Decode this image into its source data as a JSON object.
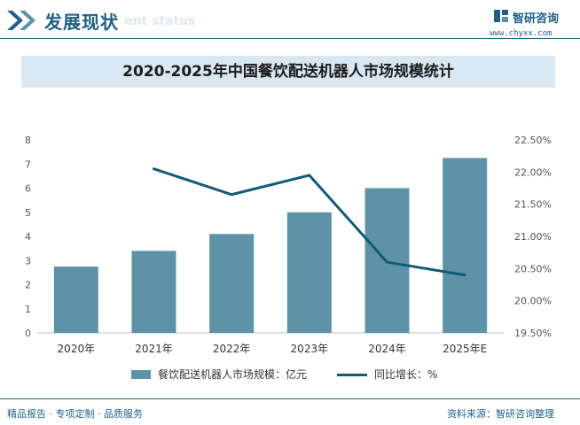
{
  "header": {
    "title": "发展现状",
    "subtitle": "ent status"
  },
  "brand": {
    "name": "智研咨询",
    "url": "www.chyxx.com"
  },
  "chart_data": {
    "type": "bar",
    "title": "2020-2025年中国餐饮配送机器人市场规模统计",
    "categories": [
      "2020年",
      "2021年",
      "2022年",
      "2023年",
      "2024年",
      "2025年E"
    ],
    "series": [
      {
        "name": "餐饮配送机器人市场规模：亿元",
        "type": "bar",
        "axis": "left",
        "values": [
          2.75,
          3.4,
          4.1,
          5.0,
          6.0,
          7.25
        ]
      },
      {
        "name": "同比增长：%",
        "type": "line",
        "axis": "right",
        "values": [
          null,
          22.05,
          21.65,
          21.95,
          20.6,
          20.4
        ]
      }
    ],
    "y_left": {
      "min": 0,
      "max": 8,
      "ticks": [
        "0",
        "1",
        "2",
        "3",
        "4",
        "5",
        "6",
        "7",
        "8"
      ]
    },
    "y_right": {
      "min": 19.5,
      "max": 22.5,
      "ticks": [
        "19.50%",
        "20.00%",
        "20.50%",
        "21.00%",
        "21.50%",
        "22.00%",
        "22.50%"
      ]
    },
    "grid": false,
    "legend": "bottom",
    "colors": {
      "bar": "#5e93a7",
      "line": "#135a76"
    }
  },
  "footer": {
    "left": "精品报告 · 专项定制 · 品质服务",
    "right": "资料来源：智研咨询整理"
  }
}
